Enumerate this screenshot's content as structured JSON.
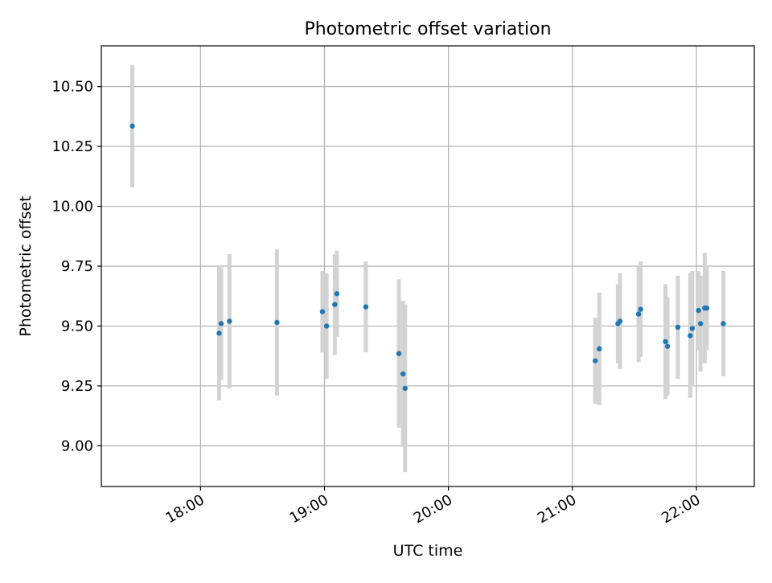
{
  "chart_data": {
    "type": "scatter",
    "title": "Photometric offset variation",
    "xlabel": "UTC time",
    "ylabel": "Photometric offset",
    "grid": true,
    "xlim": [
      "17:12",
      "22:28"
    ],
    "ylim": [
      8.83,
      10.67
    ],
    "x_ticks": [
      "18:00",
      "19:00",
      "20:00",
      "21:00",
      "22:00"
    ],
    "y_ticks": [
      "9.00",
      "9.25",
      "9.50",
      "9.75",
      "10.00",
      "10.25",
      "10.50"
    ],
    "colors": {
      "point": "#1f77b4",
      "errorbar": "#d3d3d3",
      "grid": "#b0b0b0"
    },
    "points": [
      {
        "x": "17:27",
        "y": 10.335,
        "err": 0.255
      },
      {
        "x": "18:09",
        "y": 9.47,
        "err": 0.28
      },
      {
        "x": "18:10",
        "y": 9.51,
        "err": 0.235
      },
      {
        "x": "18:14",
        "y": 9.52,
        "err": 0.28
      },
      {
        "x": "18:37",
        "y": 9.515,
        "err": 0.305
      },
      {
        "x": "18:59",
        "y": 9.56,
        "err": 0.17
      },
      {
        "x": "19:01",
        "y": 9.5,
        "err": 0.22
      },
      {
        "x": "19:05",
        "y": 9.59,
        "err": 0.21
      },
      {
        "x": "19:06",
        "y": 9.635,
        "err": 0.18
      },
      {
        "x": "19:20",
        "y": 9.58,
        "err": 0.19
      },
      {
        "x": "19:36",
        "y": 9.385,
        "err": 0.31
      },
      {
        "x": "19:38",
        "y": 9.3,
        "err": 0.305
      },
      {
        "x": "19:39",
        "y": 9.24,
        "err": 0.35
      },
      {
        "x": "21:11",
        "y": 9.355,
        "err": 0.18
      },
      {
        "x": "21:13",
        "y": 9.405,
        "err": 0.235
      },
      {
        "x": "21:22",
        "y": 9.51,
        "err": 0.165
      },
      {
        "x": "21:23",
        "y": 9.52,
        "err": 0.2
      },
      {
        "x": "21:32",
        "y": 9.55,
        "err": 0.2
      },
      {
        "x": "21:33",
        "y": 9.57,
        "err": 0.2
      },
      {
        "x": "21:45",
        "y": 9.435,
        "err": 0.24
      },
      {
        "x": "21:46",
        "y": 9.415,
        "err": 0.205
      },
      {
        "x": "21:51",
        "y": 9.495,
        "err": 0.215
      },
      {
        "x": "21:57",
        "y": 9.46,
        "err": 0.26
      },
      {
        "x": "21:58",
        "y": 9.49,
        "err": 0.24
      },
      {
        "x": "22:01",
        "y": 9.565,
        "err": 0.165
      },
      {
        "x": "22:02",
        "y": 9.51,
        "err": 0.2
      },
      {
        "x": "22:04",
        "y": 9.575,
        "err": 0.23
      },
      {
        "x": "22:05",
        "y": 9.575,
        "err": 0.175
      },
      {
        "x": "22:13",
        "y": 9.51,
        "err": 0.22
      }
    ]
  }
}
